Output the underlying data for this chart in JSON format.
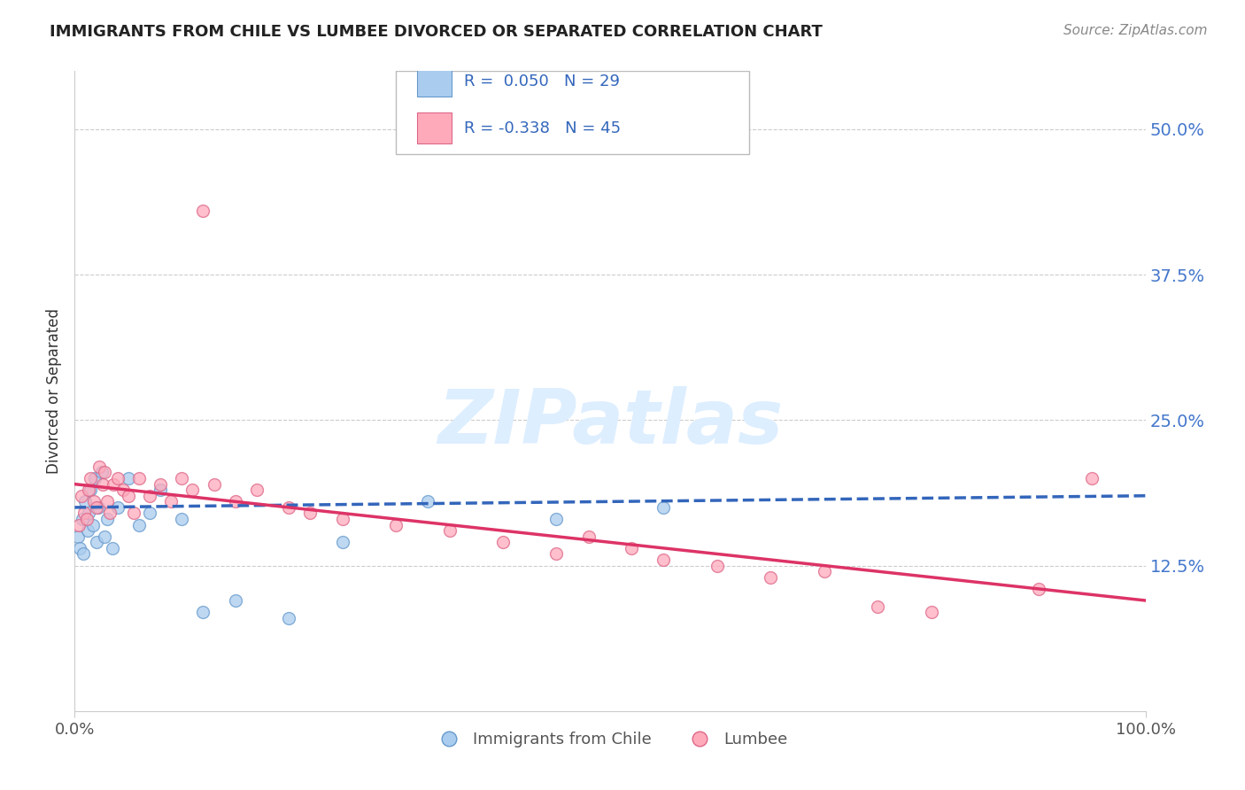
{
  "title": "IMMIGRANTS FROM CHILE VS LUMBEE DIVORCED OR SEPARATED CORRELATION CHART",
  "source_text": "Source: ZipAtlas.com",
  "ylabel": "Divorced or Separated",
  "r_chile": 0.05,
  "n_chile": 29,
  "r_lumbee": -0.338,
  "n_lumbee": 45,
  "x_range": [
    0,
    100
  ],
  "y_range": [
    0,
    55
  ],
  "y_ticks": [
    12.5,
    25.0,
    37.5,
    50.0
  ],
  "background_color": "#ffffff",
  "grid_color": "#cccccc",
  "title_color": "#222222",
  "chile_color": "#aaccee",
  "chile_edge_color": "#6699cc",
  "lumbee_color": "#ffaabb",
  "lumbee_edge_color": "#dd6688",
  "chile_line_color": "#3366bb",
  "lumbee_line_color": "#dd3366",
  "ytick_color": "#4477cc",
  "watermark_color": "#ddeeff",
  "marker_size": 100,
  "chile_points_x": [
    0.3,
    0.5,
    0.7,
    0.8,
    1.0,
    1.2,
    1.3,
    1.5,
    1.7,
    1.9,
    2.0,
    2.2,
    2.5,
    2.8,
    3.0,
    3.5,
    4.0,
    5.0,
    6.0,
    7.0,
    8.0,
    10.0,
    12.0,
    15.0,
    20.0,
    25.0,
    33.0,
    45.0,
    55.0
  ],
  "chile_points_y": [
    15.0,
    14.0,
    16.5,
    13.5,
    18.0,
    15.5,
    17.0,
    19.0,
    16.0,
    20.0,
    14.5,
    17.5,
    20.5,
    15.0,
    16.5,
    14.0,
    17.5,
    20.0,
    16.0,
    17.0,
    19.0,
    16.5,
    8.5,
    9.5,
    8.0,
    14.5,
    18.0,
    16.5,
    17.5
  ],
  "lumbee_points_x": [
    0.4,
    0.6,
    0.9,
    1.1,
    1.3,
    1.5,
    1.8,
    2.0,
    2.3,
    2.6,
    2.8,
    3.0,
    3.3,
    3.6,
    4.0,
    4.5,
    5.0,
    5.5,
    6.0,
    7.0,
    8.0,
    9.0,
    10.0,
    11.0,
    12.0,
    13.0,
    15.0,
    17.0,
    20.0,
    22.0,
    25.0,
    30.0,
    35.0,
    40.0,
    45.0,
    48.0,
    52.0,
    55.0,
    60.0,
    65.0,
    70.0,
    75.0,
    80.0,
    90.0,
    95.0
  ],
  "lumbee_points_y": [
    16.0,
    18.5,
    17.0,
    16.5,
    19.0,
    20.0,
    18.0,
    17.5,
    21.0,
    19.5,
    20.5,
    18.0,
    17.0,
    19.5,
    20.0,
    19.0,
    18.5,
    17.0,
    20.0,
    18.5,
    19.5,
    18.0,
    20.0,
    19.0,
    43.0,
    19.5,
    18.0,
    19.0,
    17.5,
    17.0,
    16.5,
    16.0,
    15.5,
    14.5,
    13.5,
    15.0,
    14.0,
    13.0,
    12.5,
    11.5,
    12.0,
    9.0,
    8.5,
    10.5,
    20.0
  ]
}
